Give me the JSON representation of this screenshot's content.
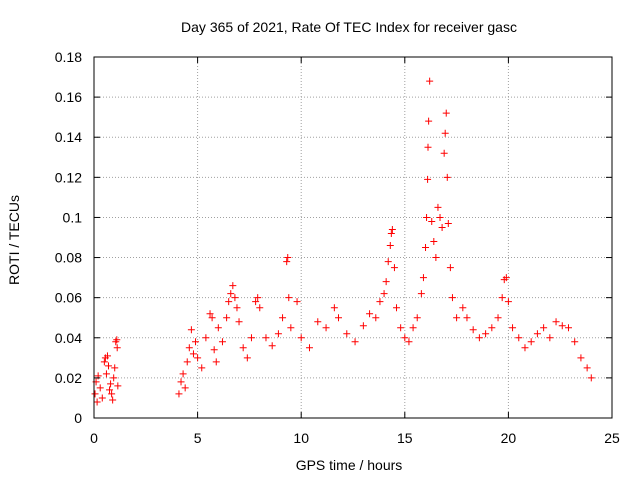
{
  "chart_data": {
    "type": "scatter",
    "title": "Day 365 of 2021, Rate Of TEC Index for receiver gasc",
    "xlabel": "GPS time / hours",
    "ylabel": "ROTI / TECUs",
    "xlim": [
      0,
      25
    ],
    "ylim": [
      0,
      0.18
    ],
    "x_ticks": [
      0,
      5,
      10,
      15,
      20,
      25
    ],
    "y_ticks": [
      0,
      0.02,
      0.04,
      0.06,
      0.08,
      0.1,
      0.12,
      0.14,
      0.16,
      0.18
    ],
    "x_tick_labels": [
      "0",
      "5",
      "10",
      "15",
      "20",
      "25"
    ],
    "y_tick_labels": [
      "0",
      "0.02",
      "0.04",
      "0.06",
      "0.08",
      "0.1",
      "0.12",
      "0.14",
      "0.16",
      "0.18"
    ],
    "grid": true,
    "marker": "+",
    "color": "#ff0000",
    "series": [
      {
        "points": [
          [
            0.05,
            0.012
          ],
          [
            0.1,
            0.018
          ],
          [
            0.15,
            0.008
          ],
          [
            0.2,
            0.021
          ],
          [
            0.3,
            0.015
          ],
          [
            0.4,
            0.01
          ],
          [
            0.5,
            0.028
          ],
          [
            0.55,
            0.03
          ],
          [
            0.6,
            0.022
          ],
          [
            0.65,
            0.031
          ],
          [
            0.7,
            0.026
          ],
          [
            0.75,
            0.014
          ],
          [
            0.8,
            0.017
          ],
          [
            0.85,
            0.012
          ],
          [
            0.9,
            0.009
          ],
          [
            0.95,
            0.02
          ],
          [
            1.0,
            0.025
          ],
          [
            1.05,
            0.038
          ],
          [
            1.1,
            0.039
          ],
          [
            1.12,
            0.035
          ],
          [
            1.15,
            0.016
          ],
          [
            4.1,
            0.012
          ],
          [
            4.2,
            0.018
          ],
          [
            4.3,
            0.022
          ],
          [
            4.4,
            0.015
          ],
          [
            4.5,
            0.028
          ],
          [
            4.6,
            0.035
          ],
          [
            4.7,
            0.044
          ],
          [
            4.8,
            0.032
          ],
          [
            4.9,
            0.038
          ],
          [
            5.0,
            0.03
          ],
          [
            5.2,
            0.025
          ],
          [
            5.4,
            0.04
          ],
          [
            5.6,
            0.052
          ],
          [
            5.7,
            0.05
          ],
          [
            5.8,
            0.034
          ],
          [
            5.9,
            0.028
          ],
          [
            6.0,
            0.045
          ],
          [
            6.2,
            0.038
          ],
          [
            6.4,
            0.05
          ],
          [
            6.5,
            0.058
          ],
          [
            6.6,
            0.062
          ],
          [
            6.7,
            0.066
          ],
          [
            6.8,
            0.06
          ],
          [
            6.9,
            0.055
          ],
          [
            7.0,
            0.048
          ],
          [
            7.2,
            0.035
          ],
          [
            7.4,
            0.03
          ],
          [
            7.6,
            0.04
          ],
          [
            7.8,
            0.058
          ],
          [
            7.9,
            0.06
          ],
          [
            8.0,
            0.055
          ],
          [
            8.3,
            0.04
          ],
          [
            8.6,
            0.036
          ],
          [
            8.9,
            0.042
          ],
          [
            9.1,
            0.05
          ],
          [
            9.3,
            0.078
          ],
          [
            9.35,
            0.08
          ],
          [
            9.4,
            0.06
          ],
          [
            9.5,
            0.045
          ],
          [
            9.8,
            0.058
          ],
          [
            10.0,
            0.04
          ],
          [
            10.4,
            0.035
          ],
          [
            10.8,
            0.048
          ],
          [
            11.2,
            0.045
          ],
          [
            11.6,
            0.055
          ],
          [
            11.8,
            0.05
          ],
          [
            12.2,
            0.042
          ],
          [
            12.6,
            0.038
          ],
          [
            13.0,
            0.046
          ],
          [
            13.3,
            0.052
          ],
          [
            13.6,
            0.05
          ],
          [
            13.8,
            0.058
          ],
          [
            14.0,
            0.062
          ],
          [
            14.1,
            0.068
          ],
          [
            14.2,
            0.078
          ],
          [
            14.3,
            0.086
          ],
          [
            14.35,
            0.092
          ],
          [
            14.4,
            0.094
          ],
          [
            14.5,
            0.075
          ],
          [
            14.6,
            0.055
          ],
          [
            14.8,
            0.045
          ],
          [
            15.0,
            0.04
          ],
          [
            15.2,
            0.038
          ],
          [
            15.4,
            0.045
          ],
          [
            15.6,
            0.05
          ],
          [
            15.8,
            0.062
          ],
          [
            15.9,
            0.07
          ],
          [
            16.0,
            0.085
          ],
          [
            16.05,
            0.1
          ],
          [
            16.1,
            0.119
          ],
          [
            16.12,
            0.135
          ],
          [
            16.15,
            0.148
          ],
          [
            16.2,
            0.168
          ],
          [
            16.3,
            0.098
          ],
          [
            16.4,
            0.088
          ],
          [
            16.5,
            0.08
          ],
          [
            16.6,
            0.105
          ],
          [
            16.7,
            0.1
          ],
          [
            16.8,
            0.095
          ],
          [
            16.9,
            0.132
          ],
          [
            16.95,
            0.142
          ],
          [
            17.0,
            0.152
          ],
          [
            17.05,
            0.12
          ],
          [
            17.1,
            0.097
          ],
          [
            17.2,
            0.075
          ],
          [
            17.3,
            0.06
          ],
          [
            17.5,
            0.05
          ],
          [
            17.8,
            0.055
          ],
          [
            18.0,
            0.05
          ],
          [
            18.3,
            0.044
          ],
          [
            18.6,
            0.04
          ],
          [
            18.9,
            0.042
          ],
          [
            19.2,
            0.045
          ],
          [
            19.5,
            0.05
          ],
          [
            19.7,
            0.06
          ],
          [
            19.8,
            0.069
          ],
          [
            19.9,
            0.07
          ],
          [
            20.0,
            0.058
          ],
          [
            20.2,
            0.045
          ],
          [
            20.5,
            0.04
          ],
          [
            20.8,
            0.035
          ],
          [
            21.1,
            0.038
          ],
          [
            21.4,
            0.042
          ],
          [
            21.7,
            0.045
          ],
          [
            22.0,
            0.04
          ],
          [
            22.3,
            0.048
          ],
          [
            22.6,
            0.046
          ],
          [
            22.9,
            0.045
          ],
          [
            23.2,
            0.038
          ],
          [
            23.5,
            0.03
          ],
          [
            23.8,
            0.025
          ],
          [
            24.0,
            0.02
          ]
        ]
      }
    ]
  }
}
